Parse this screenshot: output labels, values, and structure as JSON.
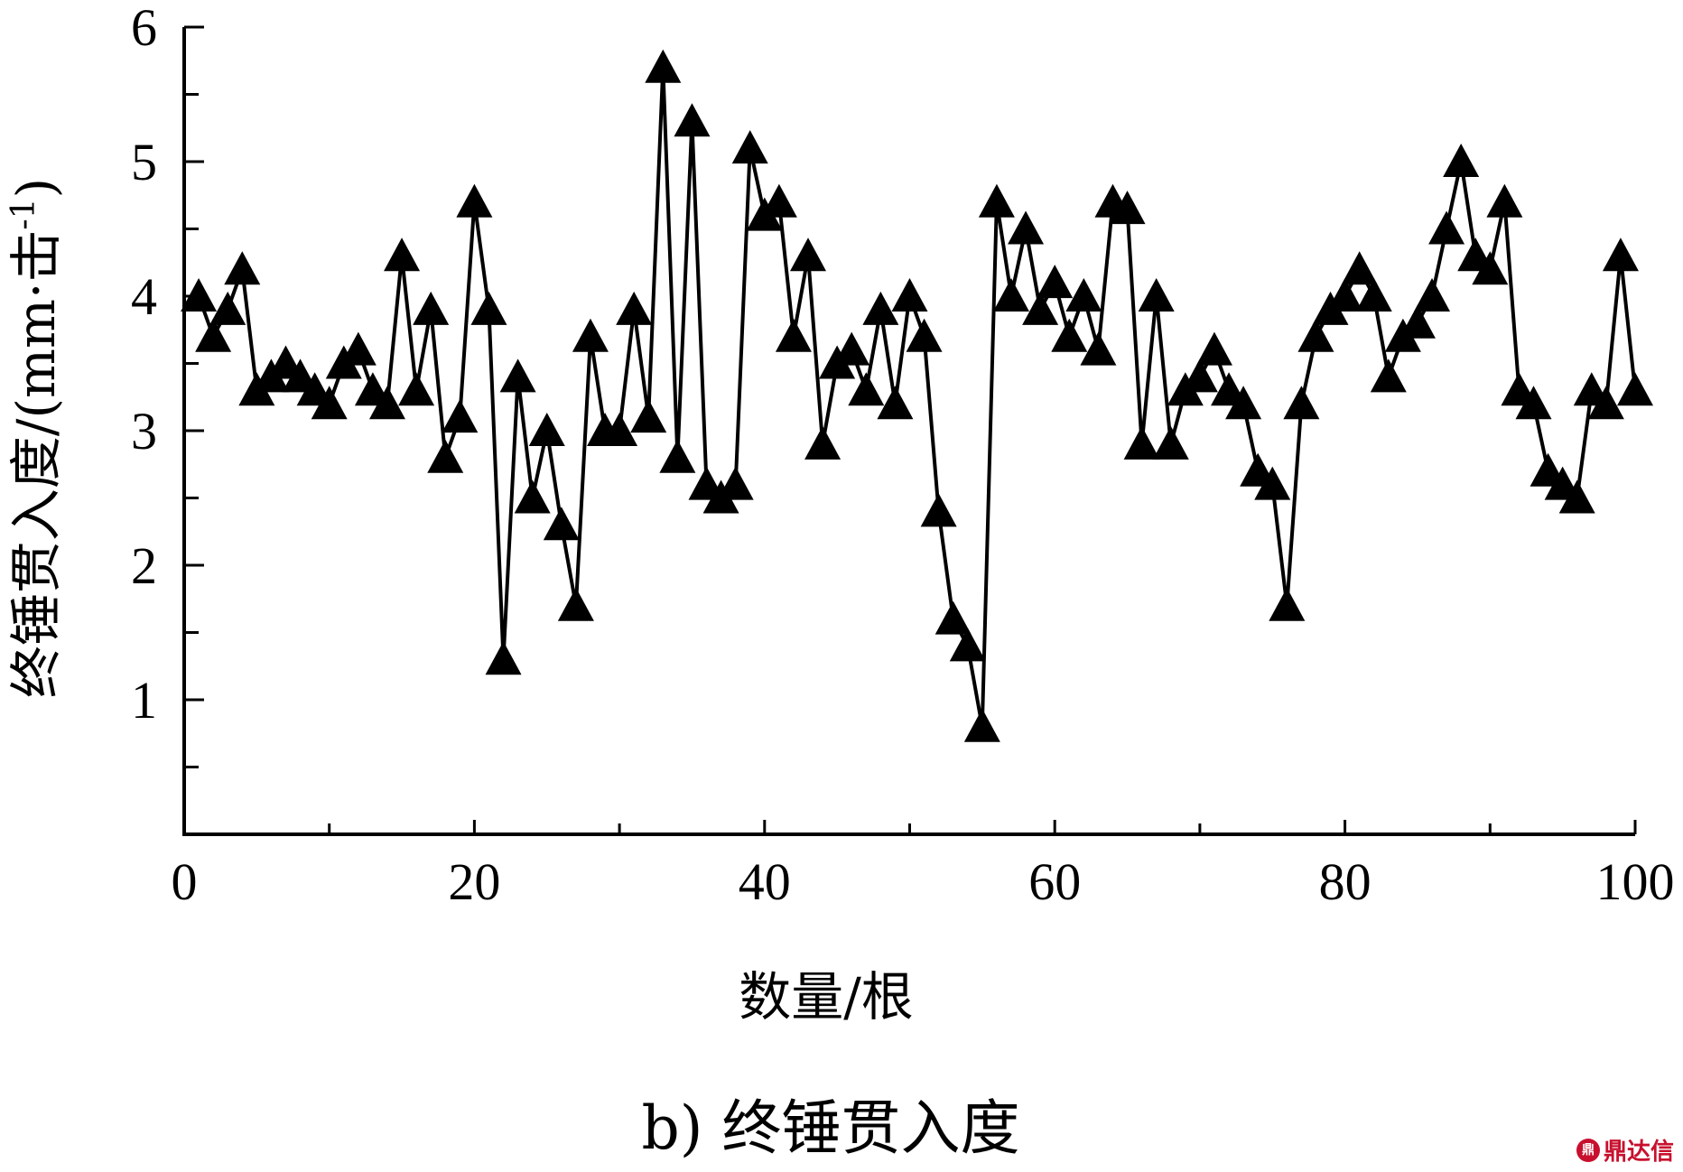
{
  "chart_data": {
    "type": "line",
    "marker": "triangle",
    "xlabel": "数量/根",
    "ylabel": "终锤贯入度/(mm·击",
    "ylabel_sup": "-1",
    "ylabel_close": ")",
    "caption": "b) 终锤贯入度",
    "xlim": [
      0,
      100
    ],
    "ylim": [
      0,
      6
    ],
    "x_ticks": [
      0,
      20,
      40,
      60,
      80,
      100
    ],
    "x_tick_labels": [
      "0",
      "20",
      "40",
      "60",
      "80",
      "100"
    ],
    "x_minor_ticks": [
      10,
      30,
      50,
      70,
      90
    ],
    "y_ticks": [
      1,
      2,
      3,
      4,
      5,
      6
    ],
    "y_tick_labels": [
      "1",
      "2",
      "3",
      "4",
      "5",
      "6"
    ],
    "y_minor_ticks": [
      0.5,
      1.5,
      2.5,
      3.5,
      4.5,
      5.5
    ],
    "x": [
      1,
      2,
      3,
      4,
      5,
      6,
      7,
      8,
      9,
      10,
      11,
      12,
      13,
      14,
      15,
      16,
      17,
      18,
      19,
      20,
      21,
      22,
      23,
      24,
      25,
      26,
      27,
      28,
      29,
      30,
      31,
      32,
      33,
      34,
      35,
      36,
      37,
      38,
      39,
      40,
      41,
      42,
      43,
      44,
      45,
      46,
      47,
      48,
      49,
      50,
      51,
      52,
      53,
      54,
      55,
      56,
      57,
      58,
      59,
      60,
      61,
      62,
      63,
      64,
      65,
      66,
      67,
      68,
      69,
      70,
      71,
      72,
      73,
      74,
      75,
      76,
      77,
      78,
      79,
      80,
      81,
      82,
      83,
      84,
      85,
      86,
      87,
      88,
      89,
      90,
      91,
      92,
      93,
      94,
      95,
      96,
      97,
      98,
      99,
      100
    ],
    "y": [
      4.0,
      3.7,
      3.9,
      4.2,
      3.3,
      3.4,
      3.5,
      3.4,
      3.3,
      3.2,
      3.5,
      3.6,
      3.3,
      3.2,
      4.3,
      3.3,
      3.9,
      2.8,
      3.1,
      4.7,
      3.9,
      1.3,
      3.4,
      2.5,
      3.0,
      2.3,
      1.7,
      3.7,
      3.0,
      3.0,
      3.9,
      3.1,
      5.7,
      2.8,
      5.3,
      2.6,
      2.5,
      2.6,
      5.1,
      4.6,
      4.7,
      3.7,
      4.3,
      2.9,
      3.5,
      3.6,
      3.3,
      3.9,
      3.2,
      4.0,
      3.7,
      2.4,
      1.6,
      1.4,
      0.8,
      4.7,
      4.0,
      4.5,
      3.9,
      4.1,
      3.7,
      4.0,
      3.6,
      4.7,
      4.65,
      2.9,
      4.0,
      2.9,
      3.3,
      3.4,
      3.6,
      3.3,
      3.2,
      2.7,
      2.6,
      1.7,
      3.2,
      3.7,
      3.9,
      4.0,
      4.2,
      4.0,
      3.4,
      3.7,
      3.8,
      4.0,
      4.5,
      5.0,
      4.3,
      4.2,
      4.7,
      3.3,
      3.2,
      2.7,
      2.6,
      2.5,
      3.3,
      3.2,
      4.3,
      3.3
    ]
  },
  "watermark": {
    "logo": "鼎",
    "text": "鼎达信"
  }
}
